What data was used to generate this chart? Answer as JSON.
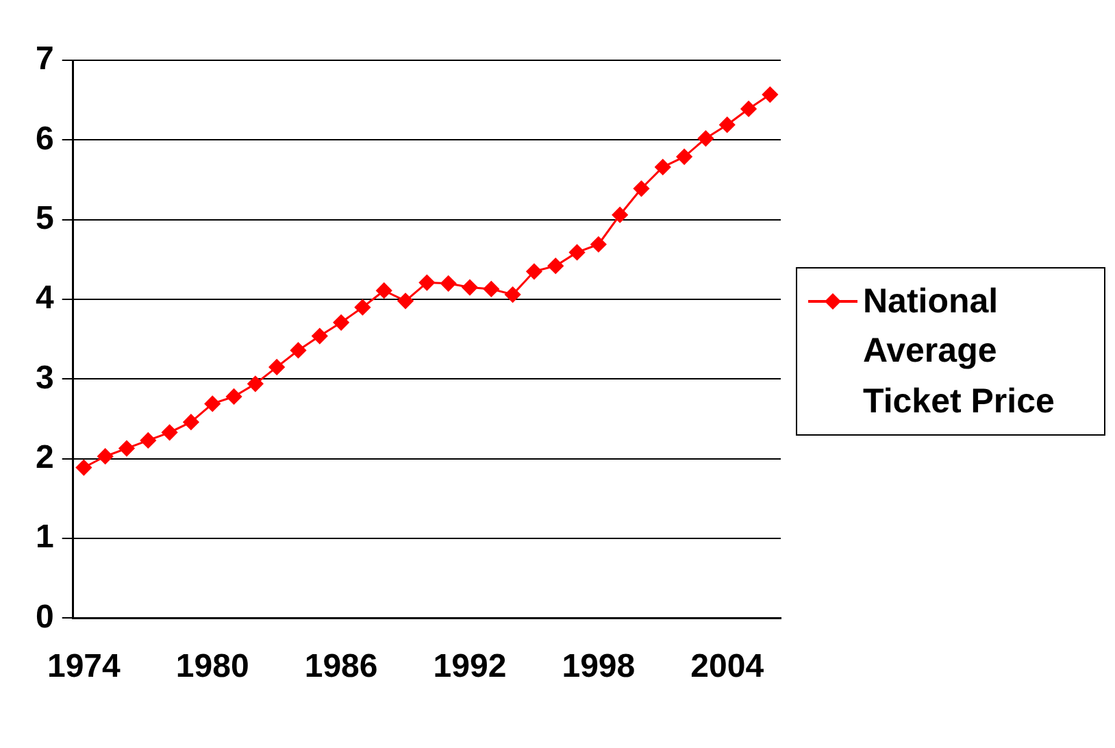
{
  "chart_data": {
    "type": "line",
    "categories": [
      "1974",
      null,
      null,
      null,
      null,
      null,
      "1980",
      null,
      null,
      null,
      null,
      null,
      "1986",
      null,
      null,
      null,
      null,
      null,
      "1992",
      null,
      null,
      null,
      null,
      null,
      "1998",
      null,
      null,
      null,
      null,
      null,
      "2004",
      null,
      null
    ],
    "series": [
      {
        "name": "National Average Ticket Price",
        "color": "#ff0000",
        "values": [
          1.89,
          2.03,
          2.13,
          2.23,
          2.33,
          2.46,
          2.69,
          2.78,
          2.94,
          3.15,
          3.36,
          3.54,
          3.71,
          3.9,
          4.11,
          3.98,
          4.21,
          4.2,
          4.15,
          4.13,
          4.06,
          4.35,
          4.42,
          4.59,
          4.69,
          5.06,
          5.39,
          5.66,
          5.79,
          6.02,
          6.19,
          6.39,
          6.57
        ]
      }
    ],
    "ylim": [
      0,
      7
    ],
    "yticks": [
      0,
      1,
      2,
      3,
      4,
      5,
      6,
      7
    ],
    "grid": "y",
    "legend": "right",
    "marker": "diamond",
    "line_style": "solid"
  }
}
